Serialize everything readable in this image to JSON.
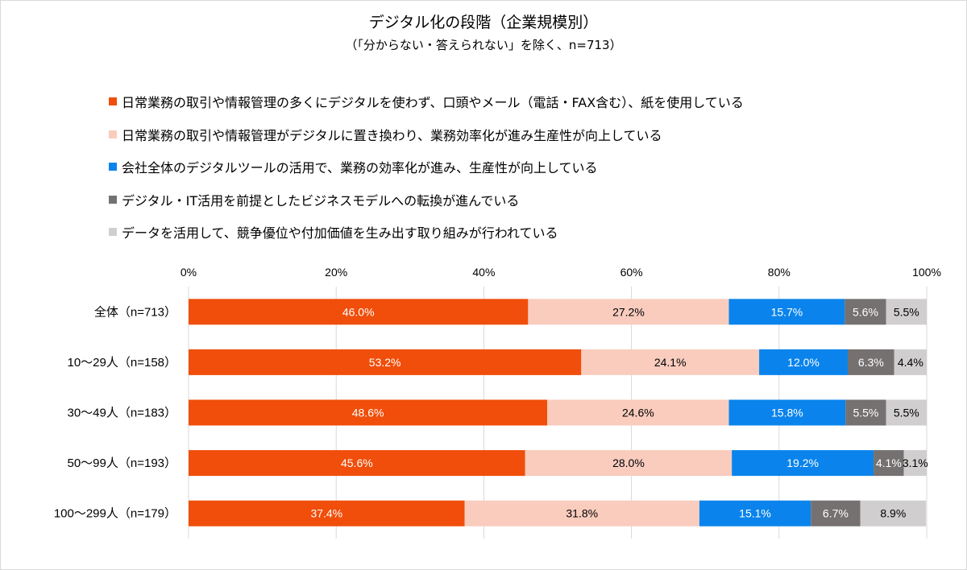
{
  "chart_data": {
    "type": "bar",
    "orientation": "horizontal",
    "stacked": true,
    "title": "デジタル化の段階（企業規模別）",
    "subtitle": "（「分からない・答えられない」を除く、n=713）",
    "categories": [
      "全体（n=713）",
      "10～29人（n=158）",
      "30～49人（n=183）",
      "50～99人（n=193）",
      "100～299人（n=179）"
    ],
    "series": [
      {
        "name": "日常業務の取引や情報管理の多くにデジタルを使わず、口頭やメール（電話・FAX含む）、紙を使用している",
        "color": "#F04E0A",
        "label_color": "#ffffff",
        "values": [
          46.0,
          53.2,
          48.6,
          45.6,
          37.4
        ]
      },
      {
        "name": "日常業務の取引や情報管理がデジタルに置き換わり、業務効率化が進み生産性が向上している",
        "color": "#F9CCBE",
        "label_color": "#000000",
        "values": [
          27.2,
          24.1,
          24.6,
          28.0,
          31.8
        ]
      },
      {
        "name": "会社全体のデジタルツールの活用で、業務の効率化が進み、生産性が向上している",
        "color": "#0A84EC",
        "label_color": "#ffffff",
        "values": [
          15.7,
          12.0,
          15.8,
          19.2,
          15.1
        ]
      },
      {
        "name": "デジタル・IT活用を前提としたビジネスモデルへの転換が進んでいる",
        "color": "#767171",
        "label_color": "#ffffff",
        "values": [
          5.6,
          6.3,
          5.5,
          4.1,
          6.7
        ]
      },
      {
        "name": "データを活用して、競争優位や付加価値を生み出す取り組みが行われている",
        "color": "#D0CECE",
        "label_color": "#000000",
        "values": [
          5.5,
          4.4,
          5.5,
          3.1,
          8.9
        ]
      }
    ],
    "xlim": [
      0,
      100
    ],
    "xticks": [
      "0%",
      "20%",
      "40%",
      "60%",
      "80%",
      "100%"
    ],
    "grid": true,
    "legend_position": "top"
  }
}
